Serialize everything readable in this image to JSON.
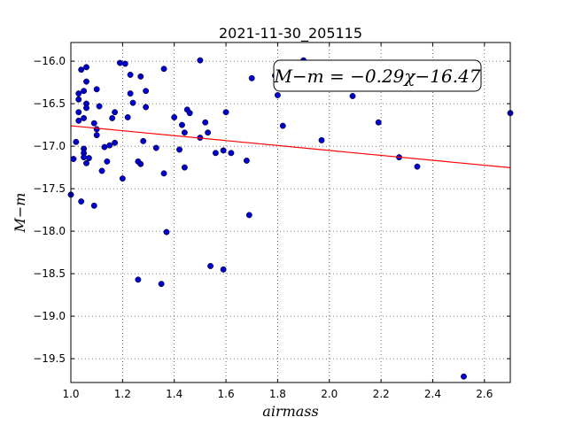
{
  "chart_data": {
    "type": "scatter",
    "title": "2021-11-30_205115",
    "xlabel": "airmass",
    "ylabel": "M−m",
    "xlim": [
      1.0,
      2.7
    ],
    "ylim": [
      -19.78,
      -15.78
    ],
    "y_inverted": true,
    "grid": true,
    "x_ticks": [
      1.0,
      1.2,
      1.4,
      1.6,
      1.8,
      2.0,
      2.2,
      2.4,
      2.6
    ],
    "x_tick_labels": [
      "1.0",
      "1.2",
      "1.4",
      "1.6",
      "1.8",
      "2.0",
      "2.2",
      "2.4",
      "2.6"
    ],
    "y_ticks": [
      -16.0,
      -16.5,
      -17.0,
      -17.5,
      -18.0,
      -18.5,
      -19.0,
      -19.5
    ],
    "y_tick_labels": [
      "−16.0",
      "−16.5",
      "−17.0",
      "−17.5",
      "−18.0",
      "−18.5",
      "−19.0",
      "−19.5"
    ],
    "annotation": "M−m = −0.29χ−16.47",
    "fit": {
      "slope": -0.29,
      "intercept": -16.47,
      "color": "#ff0000"
    },
    "point_color": "#0000cc",
    "points": [
      {
        "x": 1.0,
        "y": -17.57
      },
      {
        "x": 1.01,
        "y": -17.15
      },
      {
        "x": 1.02,
        "y": -16.95
      },
      {
        "x": 1.03,
        "y": -16.38
      },
      {
        "x": 1.03,
        "y": -16.45
      },
      {
        "x": 1.03,
        "y": -16.6
      },
      {
        "x": 1.03,
        "y": -16.7
      },
      {
        "x": 1.04,
        "y": -16.1
      },
      {
        "x": 1.04,
        "y": -17.65
      },
      {
        "x": 1.05,
        "y": -17.03
      },
      {
        "x": 1.05,
        "y": -17.08
      },
      {
        "x": 1.05,
        "y": -17.13
      },
      {
        "x": 1.05,
        "y": -16.35
      },
      {
        "x": 1.05,
        "y": -16.67
      },
      {
        "x": 1.06,
        "y": -16.07
      },
      {
        "x": 1.06,
        "y": -16.24
      },
      {
        "x": 1.06,
        "y": -16.5
      },
      {
        "x": 1.06,
        "y": -16.55
      },
      {
        "x": 1.06,
        "y": -17.2
      },
      {
        "x": 1.07,
        "y": -17.14
      },
      {
        "x": 1.09,
        "y": -16.73
      },
      {
        "x": 1.09,
        "y": -17.7
      },
      {
        "x": 1.1,
        "y": -16.33
      },
      {
        "x": 1.1,
        "y": -16.87
      },
      {
        "x": 1.1,
        "y": -16.8
      },
      {
        "x": 1.11,
        "y": -16.53
      },
      {
        "x": 1.12,
        "y": -17.29
      },
      {
        "x": 1.13,
        "y": -17.01
      },
      {
        "x": 1.14,
        "y": -17.18
      },
      {
        "x": 1.15,
        "y": -16.99
      },
      {
        "x": 1.16,
        "y": -16.67
      },
      {
        "x": 1.17,
        "y": -16.6
      },
      {
        "x": 1.17,
        "y": -16.96
      },
      {
        "x": 1.19,
        "y": -16.02
      },
      {
        "x": 1.2,
        "y": -17.38
      },
      {
        "x": 1.21,
        "y": -16.03
      },
      {
        "x": 1.22,
        "y": -16.66
      },
      {
        "x": 1.23,
        "y": -16.16
      },
      {
        "x": 1.23,
        "y": -16.38
      },
      {
        "x": 1.24,
        "y": -16.49
      },
      {
        "x": 1.26,
        "y": -18.57
      },
      {
        "x": 1.26,
        "y": -17.18
      },
      {
        "x": 1.27,
        "y": -16.18
      },
      {
        "x": 1.27,
        "y": -17.21
      },
      {
        "x": 1.28,
        "y": -16.94
      },
      {
        "x": 1.29,
        "y": -16.54
      },
      {
        "x": 1.29,
        "y": -16.35
      },
      {
        "x": 1.33,
        "y": -17.02
      },
      {
        "x": 1.35,
        "y": -18.62
      },
      {
        "x": 1.36,
        "y": -17.32
      },
      {
        "x": 1.36,
        "y": -16.09
      },
      {
        "x": 1.37,
        "y": -18.01
      },
      {
        "x": 1.4,
        "y": -16.66
      },
      {
        "x": 1.42,
        "y": -17.04
      },
      {
        "x": 1.43,
        "y": -16.75
      },
      {
        "x": 1.44,
        "y": -16.84
      },
      {
        "x": 1.44,
        "y": -17.25
      },
      {
        "x": 1.45,
        "y": -16.57
      },
      {
        "x": 1.46,
        "y": -16.61
      },
      {
        "x": 1.5,
        "y": -15.99
      },
      {
        "x": 1.5,
        "y": -16.9
      },
      {
        "x": 1.52,
        "y": -16.72
      },
      {
        "x": 1.53,
        "y": -16.84
      },
      {
        "x": 1.54,
        "y": -18.41
      },
      {
        "x": 1.56,
        "y": -17.08
      },
      {
        "x": 1.59,
        "y": -18.45
      },
      {
        "x": 1.59,
        "y": -17.05
      },
      {
        "x": 1.6,
        "y": -16.6
      },
      {
        "x": 1.62,
        "y": -17.08
      },
      {
        "x": 1.68,
        "y": -17.17
      },
      {
        "x": 1.69,
        "y": -17.81
      },
      {
        "x": 1.7,
        "y": -16.2
      },
      {
        "x": 1.79,
        "y": -16.17
      },
      {
        "x": 1.8,
        "y": -16.4
      },
      {
        "x": 1.82,
        "y": -16.76
      },
      {
        "x": 1.9,
        "y": -15.99
      },
      {
        "x": 1.97,
        "y": -16.93
      },
      {
        "x": 2.09,
        "y": -16.41
      },
      {
        "x": 2.19,
        "y": -16.72
      },
      {
        "x": 2.27,
        "y": -17.13
      },
      {
        "x": 2.34,
        "y": -17.24
      },
      {
        "x": 2.52,
        "y": -19.71
      },
      {
        "x": 2.7,
        "y": -16.61
      }
    ]
  }
}
